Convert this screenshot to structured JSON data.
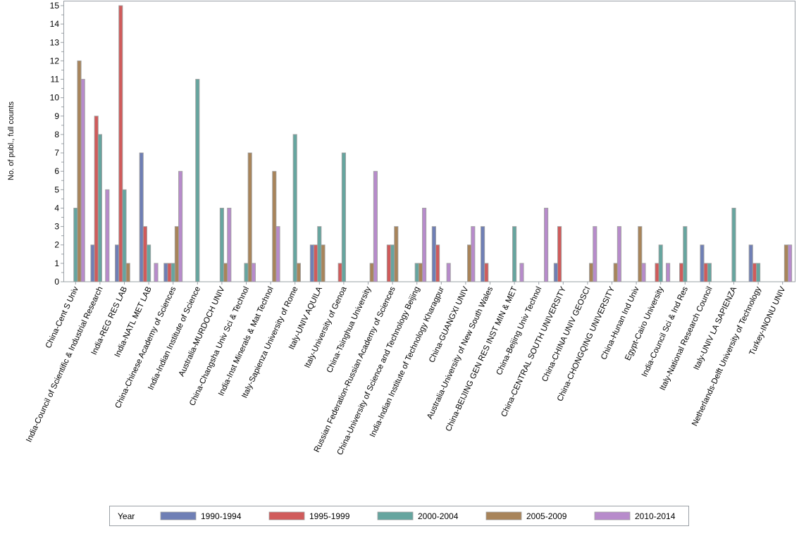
{
  "chart_data": {
    "type": "bar",
    "title": "",
    "xlabel": "",
    "ylabel": "No. of publ., full counts",
    "ylim": [
      0,
      15
    ],
    "yticks": [
      0,
      1,
      2,
      3,
      4,
      5,
      6,
      7,
      8,
      9,
      10,
      11,
      12,
      13,
      14,
      15
    ],
    "legend": {
      "title": "Year",
      "placement": "bottom"
    },
    "categories": [
      "China-Cent S Univ",
      "India-Council of Scientific & Industrial Research",
      "India-REG RES LAB",
      "India-NATL MET LAB",
      "China-Chinese Academy of Sciences",
      "India-Indian Institute of Science",
      "Australia-MURDOCH UNIV",
      "China-Changsha Univ Sci & Technol",
      "India-Inst Minerals & Mat Technol",
      "Italy-Sapienza University of Rome",
      "Italy-UNIV AQUILA",
      "Italy-University of Genoa",
      "China-Tsinghua University",
      "Russian Federation-Russian Academy of Sciences",
      "China-University of Science and Technology Beijing",
      "India-Indian Institute of Technology Kharagpur",
      "China-GUANGXI UNIV",
      "Australia-University of New South Wales",
      "China-BEIJING GEN RES INST MIN & MET",
      "China-Beijing Univ Technol",
      "China-CENTRAL SOUTH UNIVERSITY",
      "China-CHINA UNIV GEOSCI",
      "China-CHONGQING UNIVERSITY",
      "China-Hunan Ind Univ",
      "Egypt-Cairo University",
      "India-Council Sci & Ind Res",
      "Italy-National Research Council",
      "Italy-UNIV LA SAPIENZA",
      "Netherlands-Delft University of Technology",
      "Turkey-INONU UNIV"
    ],
    "series": [
      {
        "name": "1990-1994",
        "color": "#6f7fb5",
        "values": [
          0,
          2,
          2,
          7,
          1,
          0,
          0,
          0,
          0,
          0,
          2,
          0,
          0,
          0,
          0,
          3,
          0,
          3,
          0,
          0,
          1,
          0,
          0,
          0,
          0,
          0,
          2,
          0,
          2,
          0
        ]
      },
      {
        "name": "1995-1999",
        "color": "#d05b5b",
        "values": [
          0,
          9,
          15,
          3,
          1,
          0,
          0,
          0,
          0,
          0,
          2,
          1,
          0,
          2,
          0,
          2,
          0,
          1,
          0,
          0,
          3,
          0,
          0,
          0,
          1,
          1,
          1,
          0,
          1,
          0
        ]
      },
      {
        "name": "2000-2004",
        "color": "#66a59f",
        "values": [
          4,
          8,
          5,
          2,
          1,
          11,
          4,
          1,
          0,
          8,
          3,
          7,
          0,
          2,
          1,
          0,
          0,
          0,
          3,
          0,
          0,
          0,
          0,
          0,
          2,
          3,
          1,
          4,
          1,
          0
        ]
      },
      {
        "name": "2005-2009",
        "color": "#a8845a",
        "values": [
          12,
          0,
          1,
          0,
          3,
          0,
          1,
          7,
          6,
          1,
          2,
          0,
          1,
          3,
          1,
          0,
          2,
          0,
          0,
          0,
          0,
          1,
          1,
          3,
          0,
          0,
          0,
          0,
          0,
          2
        ]
      },
      {
        "name": "2010-2014",
        "color": "#b78bcb",
        "values": [
          11,
          5,
          0,
          1,
          6,
          0,
          4,
          1,
          3,
          0,
          0,
          0,
          6,
          0,
          4,
          1,
          3,
          0,
          1,
          4,
          0,
          3,
          3,
          1,
          1,
          0,
          0,
          0,
          0,
          2
        ]
      }
    ]
  }
}
